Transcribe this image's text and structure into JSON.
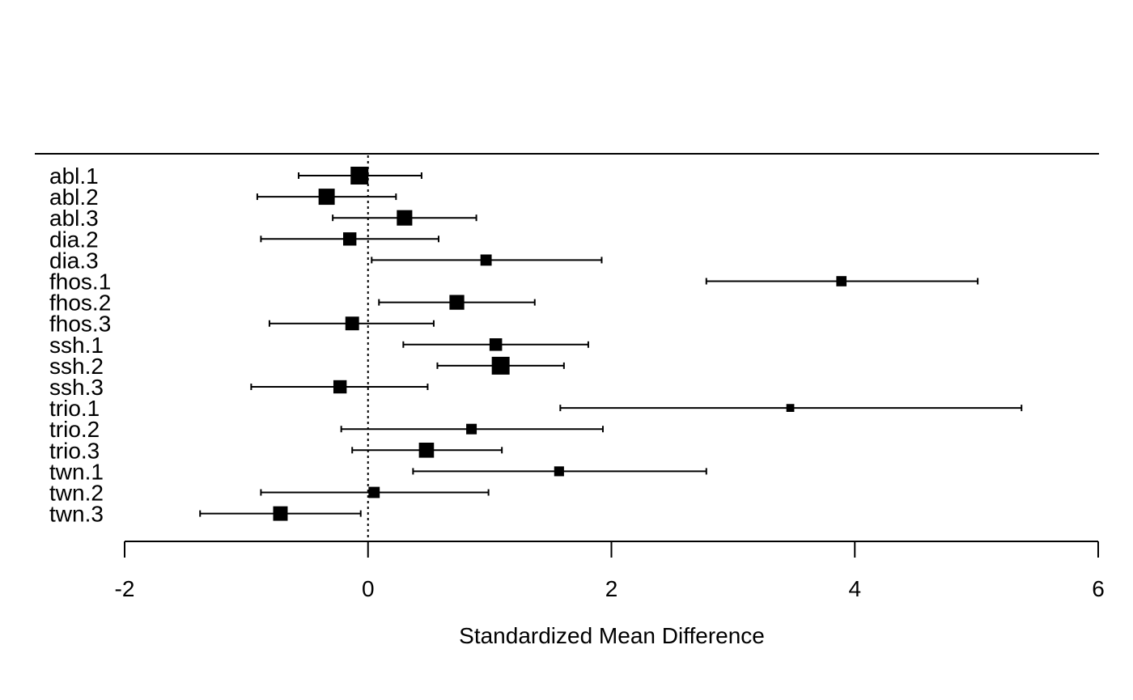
{
  "chart_data": {
    "type": "forest",
    "xlabel": "Standardized Mean Difference",
    "xlim": [
      -2,
      6
    ],
    "xticks": [
      -2,
      0,
      2,
      4,
      6
    ],
    "xtick_labels": [
      "-2",
      "0",
      "2",
      "4",
      "6"
    ],
    "reference_line": 0,
    "studies": [
      {
        "label": "abl.1",
        "estimate": -0.07,
        "ci_lower": -0.57,
        "ci_upper": 0.44,
        "weight": 1.0
      },
      {
        "label": "abl.2",
        "estimate": -0.34,
        "ci_lower": -0.91,
        "ci_upper": 0.23,
        "weight": 0.88
      },
      {
        "label": "abl.3",
        "estimate": 0.3,
        "ci_lower": -0.29,
        "ci_upper": 0.89,
        "weight": 0.83
      },
      {
        "label": "dia.2",
        "estimate": -0.15,
        "ci_lower": -0.88,
        "ci_upper": 0.58,
        "weight": 0.67
      },
      {
        "label": "dia.3",
        "estimate": 0.97,
        "ci_lower": 0.03,
        "ci_upper": 1.92,
        "weight": 0.52
      },
      {
        "label": "fhos.1",
        "estimate": 3.89,
        "ci_lower": 2.78,
        "ci_upper": 5.01,
        "weight": 0.45
      },
      {
        "label": "fhos.2",
        "estimate": 0.73,
        "ci_lower": 0.09,
        "ci_upper": 1.37,
        "weight": 0.78
      },
      {
        "label": "fhos.3",
        "estimate": -0.13,
        "ci_lower": -0.81,
        "ci_upper": 0.54,
        "weight": 0.7
      },
      {
        "label": "ssh.1",
        "estimate": 1.05,
        "ci_lower": 0.29,
        "ci_upper": 1.81,
        "weight": 0.62
      },
      {
        "label": "ssh.2",
        "estimate": 1.09,
        "ci_lower": 0.57,
        "ci_upper": 1.61,
        "weight": 1.0
      },
      {
        "label": "ssh.3",
        "estimate": -0.23,
        "ci_lower": -0.96,
        "ci_upper": 0.49,
        "weight": 0.67
      },
      {
        "label": "trio.1",
        "estimate": 3.47,
        "ci_lower": 1.58,
        "ci_upper": 5.37,
        "weight": 0.28
      },
      {
        "label": "trio.2",
        "estimate": 0.85,
        "ci_lower": -0.22,
        "ci_upper": 1.93,
        "weight": 0.47
      },
      {
        "label": "trio.3",
        "estimate": 0.48,
        "ci_lower": -0.13,
        "ci_upper": 1.1,
        "weight": 0.8
      },
      {
        "label": "twn.1",
        "estimate": 1.57,
        "ci_lower": 0.37,
        "ci_upper": 2.78,
        "weight": 0.42
      },
      {
        "label": "twn.2",
        "estimate": 0.05,
        "ci_lower": -0.88,
        "ci_upper": 0.99,
        "weight": 0.52
      },
      {
        "label": "twn.3",
        "estimate": -0.72,
        "ci_lower": -1.38,
        "ci_upper": -0.06,
        "weight": 0.76
      }
    ]
  }
}
